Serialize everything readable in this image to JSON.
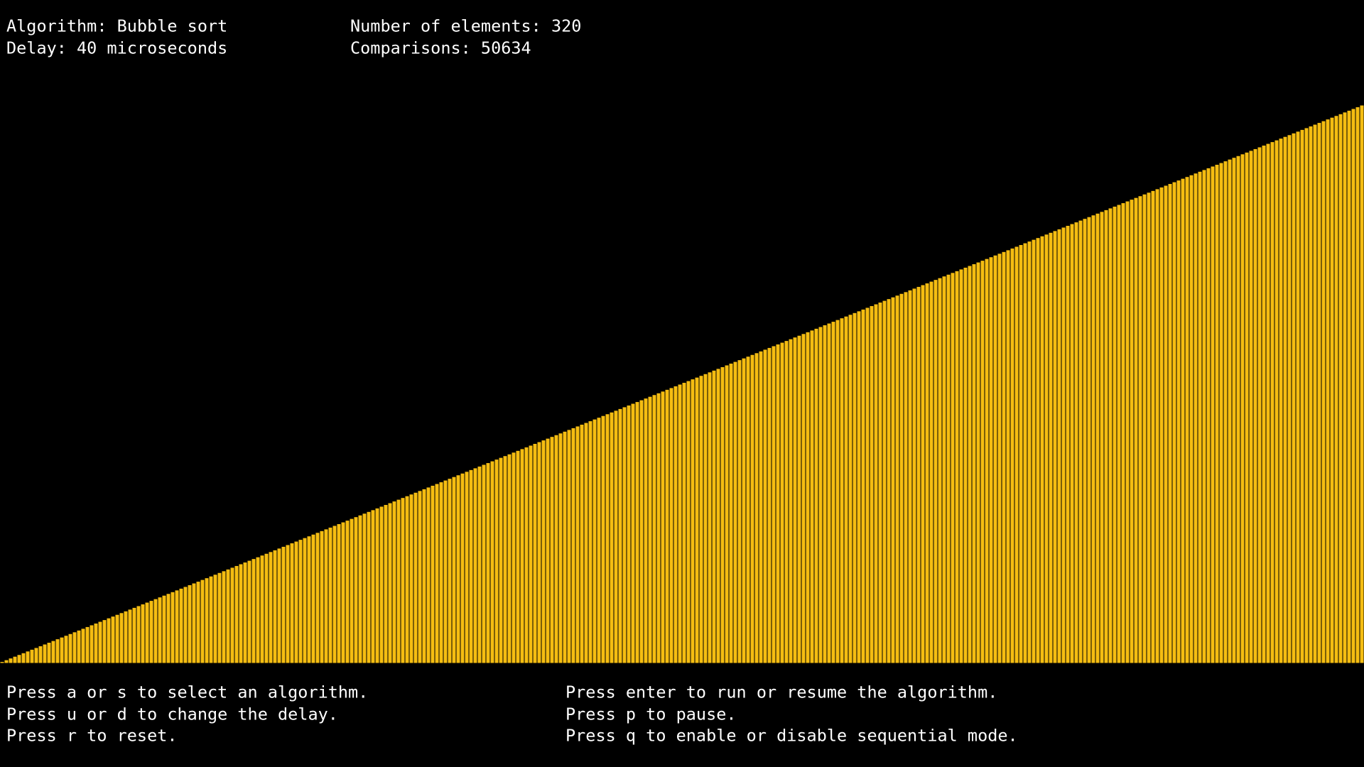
{
  "header": {
    "left": [
      "Algorithm: Bubble sort",
      "Delay: 40 microseconds"
    ],
    "right": [
      "Number of elements: 320",
      "Comparisons: 50634"
    ]
  },
  "bars": {
    "color": "#f5bd12",
    "values": [
      1,
      2,
      3,
      4,
      5,
      6,
      7,
      8,
      9,
      10,
      11,
      12,
      13,
      14,
      15,
      16,
      17,
      18,
      19,
      20,
      21,
      22,
      23,
      24,
      25,
      26,
      27,
      28,
      29,
      30,
      31,
      32,
      33,
      34,
      35,
      36,
      37,
      38,
      39,
      40,
      41,
      42,
      43,
      44,
      45,
      46,
      47,
      48,
      49,
      50,
      51,
      52,
      53,
      54,
      55,
      56,
      57,
      58,
      59,
      60,
      61,
      62,
      63,
      64,
      65,
      66,
      67,
      68,
      69,
      70,
      71,
      72,
      73,
      74,
      75,
      76,
      77,
      78,
      79,
      80,
      81,
      82,
      83,
      84,
      85,
      86,
      87,
      88,
      89,
      90,
      91,
      92,
      93,
      94,
      95,
      96,
      97,
      98,
      99,
      100,
      101,
      102,
      103,
      104,
      105,
      106,
      107,
      108,
      109,
      110,
      111,
      112,
      113,
      114,
      115,
      116,
      117,
      118,
      119,
      120,
      121,
      122,
      123,
      124,
      125,
      126,
      127,
      128,
      129,
      130,
      131,
      132,
      133,
      134,
      135,
      136,
      137,
      138,
      139,
      140,
      141,
      142,
      143,
      144,
      145,
      146,
      147,
      148,
      149,
      150,
      151,
      152,
      153,
      154,
      155,
      156,
      157,
      158,
      159,
      160,
      161,
      162,
      163,
      164,
      165,
      166,
      167,
      168,
      169,
      170,
      171,
      172,
      173,
      174,
      175,
      176,
      177,
      178,
      179,
      180,
      181,
      182,
      183,
      184,
      185,
      186,
      187,
      188,
      189,
      190,
      191,
      192,
      193,
      194,
      195,
      196,
      197,
      198,
      199,
      200,
      201,
      202,
      203,
      204,
      205,
      206,
      207,
      208,
      209,
      210,
      211,
      212,
      213,
      214,
      215,
      216,
      217,
      218,
      219,
      220,
      221,
      222,
      223,
      224,
      225,
      226,
      227,
      228,
      229,
      230,
      231,
      232,
      233,
      234,
      235,
      236,
      237,
      238,
      239,
      240,
      241,
      242,
      243,
      244,
      245,
      246,
      247,
      248,
      249,
      250,
      251,
      252,
      253,
      254,
      255,
      256,
      257,
      258,
      259,
      260,
      261,
      262,
      263,
      264,
      265,
      266,
      267,
      268,
      269,
      270,
      271,
      272,
      273,
      274,
      275,
      276,
      277,
      278,
      279,
      280,
      281,
      282,
      283,
      284,
      285,
      286,
      287,
      288,
      289,
      290,
      291,
      292,
      293,
      294,
      295,
      296,
      297,
      298,
      299,
      300,
      301,
      302,
      303,
      304,
      305,
      306,
      307,
      308,
      309,
      310,
      311,
      312,
      313,
      314,
      315,
      316,
      317,
      318,
      319,
      320
    ]
  },
  "footer": {
    "left": [
      "Press a or s to select an algorithm.",
      "Press u or d to change the delay.",
      "Press r to reset."
    ],
    "right": [
      "Press enter to run or resume the algorithm.",
      "Press p to pause.",
      "Press q to enable or disable sequential mode."
    ]
  }
}
